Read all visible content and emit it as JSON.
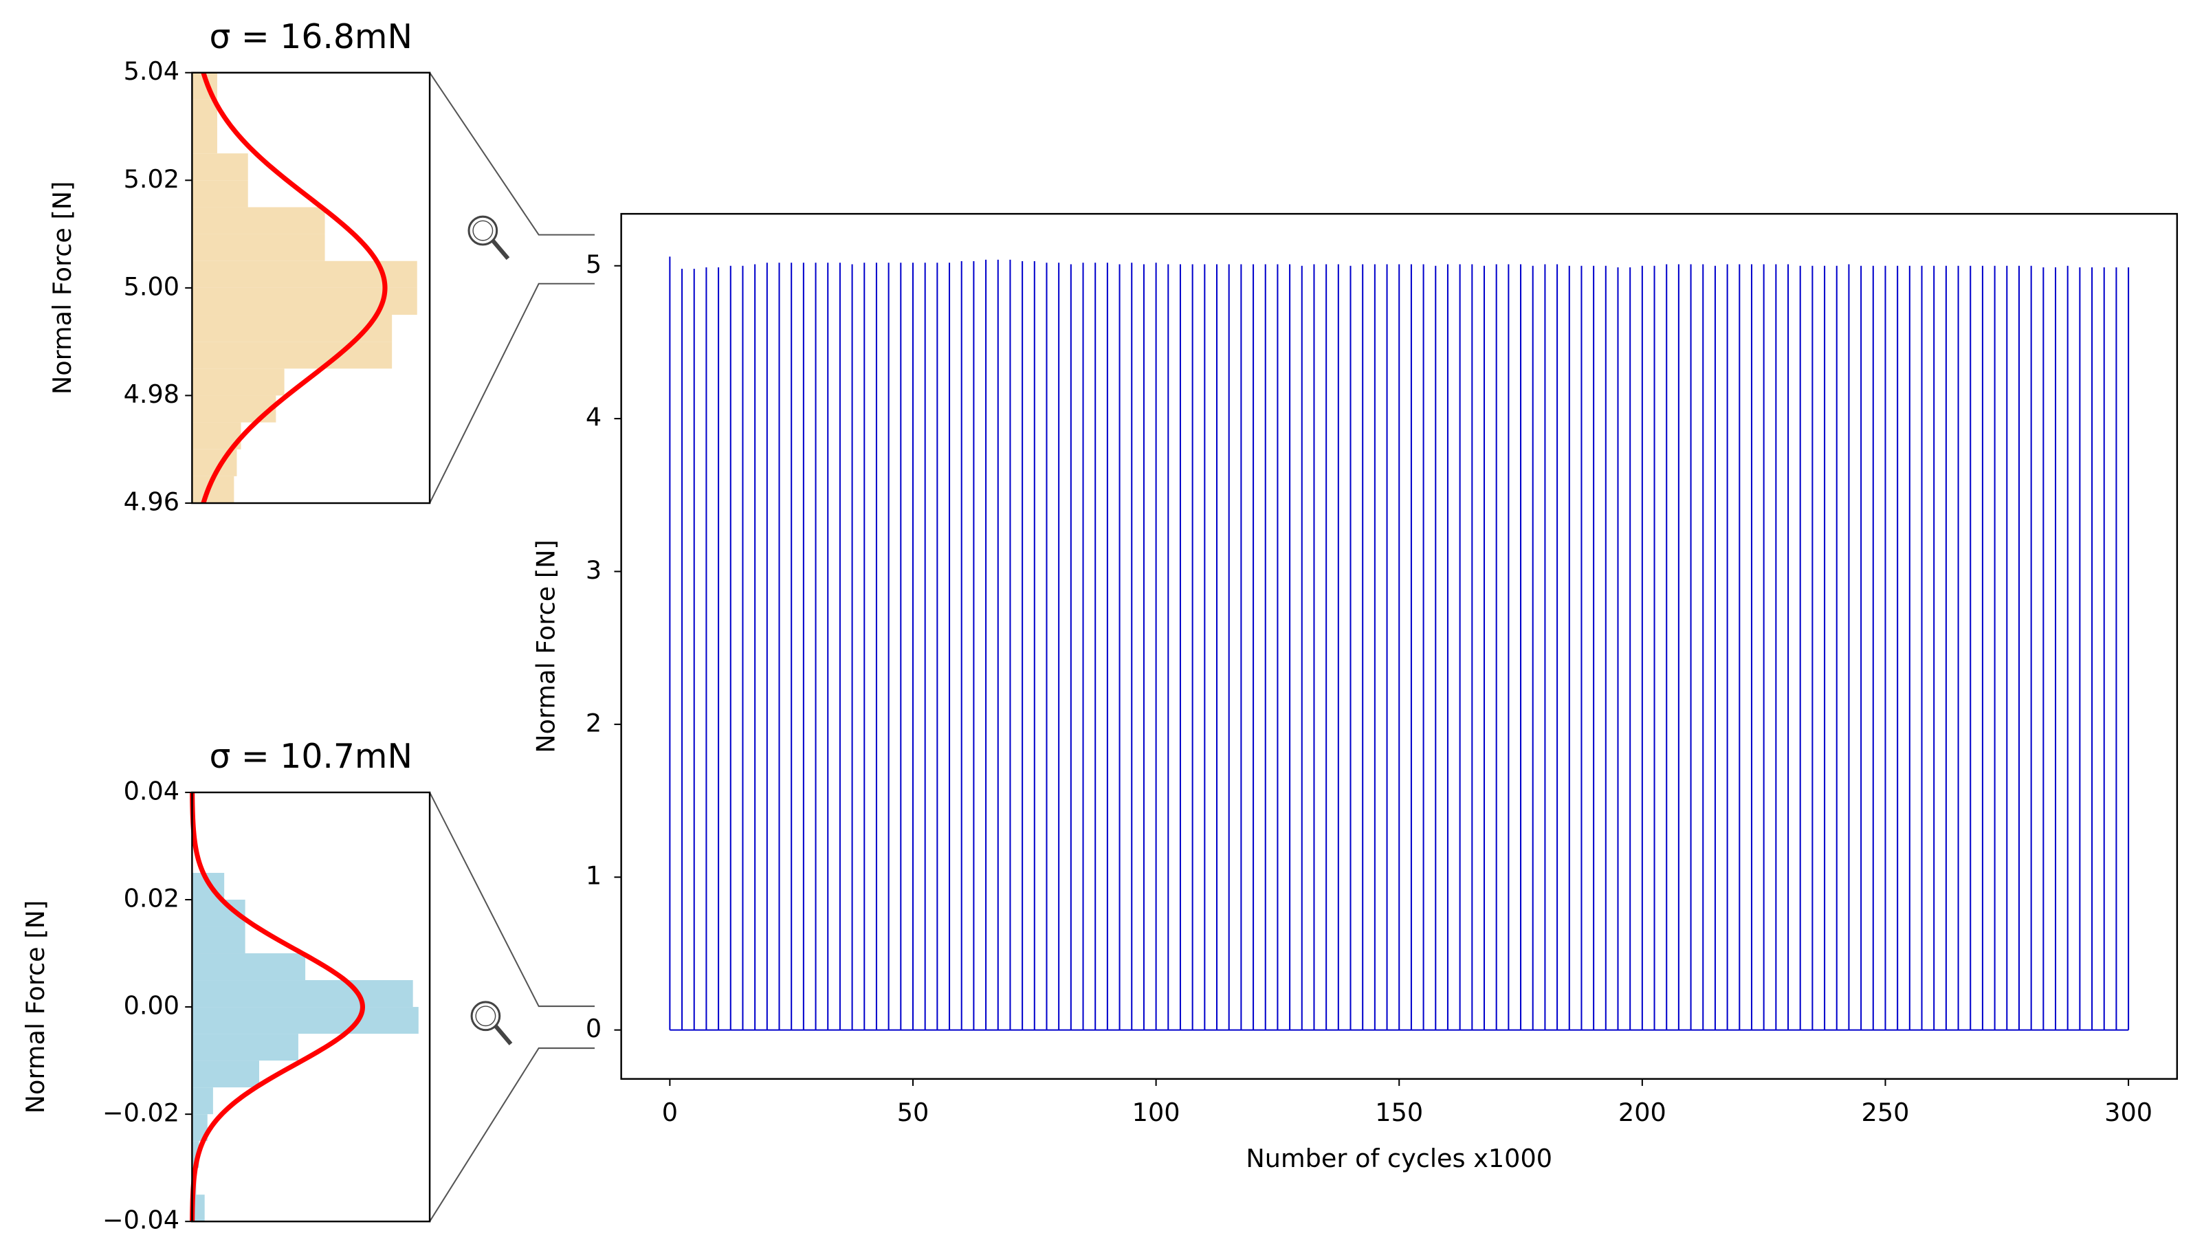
{
  "chart_data": [
    {
      "type": "hbar_hist",
      "title": "σ = 16.8mN",
      "ylabel": "Normal Force [N]",
      "ylim": [
        4.96,
        5.04
      ],
      "yticks": [
        4.96,
        4.98,
        {
          "value": 5,
          "label": "5.00"
        },
        5.02,
        5.04
      ],
      "xlim": [
        0,
        170
      ],
      "bins": [
        4.96,
        4.965,
        4.97,
        4.975,
        4.98,
        4.985,
        4.99,
        4.995,
        5.0,
        5.005,
        5.01,
        5.015,
        5.02,
        5.025,
        5.03,
        5.035,
        5.04
      ],
      "counts": [
        30,
        32,
        35,
        60,
        66,
        143,
        143,
        161,
        161,
        95,
        95,
        40,
        40,
        18,
        18,
        18
      ],
      "color": "#f5deb3",
      "fit": {
        "mean": 5.0,
        "sigma": 0.0168,
        "peak": 138,
        "color": "#ff0000"
      }
    },
    {
      "type": "hbar_hist",
      "title": "σ = 10.7mN",
      "ylabel": "Normal Force [N]",
      "ylim": [
        -0.04,
        0.04
      ],
      "yticks": [
        {
          "value": -0.04,
          "label": "−0.04"
        },
        {
          "value": -0.02,
          "label": "−0.02"
        },
        {
          "value": 0,
          "label": "0.00"
        },
        0.02,
        0.04
      ],
      "xlim": [
        0,
        170
      ],
      "bins": [
        -0.04,
        -0.035,
        -0.03,
        -0.025,
        -0.02,
        -0.015,
        -0.01,
        -0.005,
        0,
        0.005,
        0.01,
        0.015,
        0.02,
        0.025
      ],
      "counts": [
        9,
        3,
        5,
        11,
        15,
        48,
        76,
        162,
        158,
        81,
        38,
        38,
        23
      ],
      "color": "#add8e6",
      "fit": {
        "mean": 0,
        "sigma": 0.0107,
        "peak": 122,
        "color": "#ff0000"
      }
    },
    {
      "type": "spikes",
      "xlabel": "Number of cycles x1000",
      "ylabel": "Normal Force [N]",
      "xlim": [
        -10,
        310
      ],
      "xticks": [
        0,
        50,
        100,
        150,
        200,
        250,
        300
      ],
      "ylim": [
        -0.32,
        5.34
      ],
      "yticks": [
        0,
        1,
        2,
        3,
        4,
        5
      ],
      "color": "#0000cc",
      "baseline": 0,
      "x": [
        0,
        2.5,
        5,
        7.5,
        10,
        12.5,
        15,
        17.5,
        20,
        22.5,
        25,
        27.5,
        30,
        32.5,
        35,
        37.5,
        40,
        42.5,
        45,
        47.5,
        50,
        52.5,
        55,
        57.5,
        60,
        62.5,
        65,
        67.5,
        70,
        72.5,
        75,
        77.5,
        80,
        82.5,
        85,
        87.5,
        90,
        92.5,
        95,
        97.5,
        100,
        102.5,
        105,
        107.5,
        110,
        112.5,
        115,
        117.5,
        120,
        122.5,
        125,
        127.5,
        130,
        132.5,
        135,
        137.5,
        140,
        142.5,
        145,
        147.5,
        150,
        152.5,
        155,
        157.5,
        160,
        162.5,
        165,
        167.5,
        170,
        172.5,
        175,
        177.5,
        180,
        182.5,
        185,
        187.5,
        190,
        192.5,
        195,
        197.5,
        200,
        202.5,
        205,
        207.5,
        210,
        212.5,
        215,
        217.5,
        220,
        222.5,
        225,
        227.5,
        230,
        232.5,
        235,
        237.5,
        240,
        242.5,
        245,
        247.5,
        250,
        252.5,
        255,
        257.5,
        260,
        262.5,
        265,
        267.5,
        270,
        272.5,
        275,
        277.5,
        280,
        282.5,
        285,
        287.5,
        290,
        292.5,
        295,
        297.5,
        300
      ],
      "values": [
        5.06,
        4.98,
        4.98,
        4.99,
        4.99,
        5.0,
        5.0,
        5.01,
        5.02,
        5.02,
        5.02,
        5.02,
        5.02,
        5.02,
        5.02,
        5.01,
        5.02,
        5.02,
        5.02,
        5.02,
        5.02,
        5.02,
        5.02,
        5.02,
        5.03,
        5.03,
        5.04,
        5.04,
        5.04,
        5.03,
        5.03,
        5.02,
        5.02,
        5.01,
        5.02,
        5.02,
        5.02,
        5.01,
        5.02,
        5.01,
        5.02,
        5.01,
        5.01,
        5.01,
        5.01,
        5.01,
        5.01,
        5.01,
        5.01,
        5.01,
        5.01,
        5.01,
        5.0,
        5.01,
        5.01,
        5.01,
        5.0,
        5.01,
        5.01,
        5.01,
        5.01,
        5.01,
        5.01,
        5.0,
        5.01,
        5.01,
        5.01,
        5.0,
        5.01,
        5.01,
        5.01,
        5.0,
        5.01,
        5.01,
        5.0,
        5.0,
        5.0,
        5.0,
        4.99,
        4.99,
        5.0,
        5.0,
        5.01,
        5.01,
        5.01,
        5.01,
        5.0,
        5.01,
        5.01,
        5.01,
        5.01,
        5.01,
        5.01,
        5.0,
        5.0,
        5.0,
        5.0,
        5.01,
        5.0,
        5.0,
        5.0,
        5.0,
        5.0,
        5.0,
        5.0,
        5.0,
        5.0,
        5.0,
        5.0,
        5.0,
        5.0,
        5.0,
        5.0,
        4.99,
        4.99,
        5.0,
        4.99,
        4.99,
        4.99,
        4.99,
        4.99
      ]
    }
  ]
}
